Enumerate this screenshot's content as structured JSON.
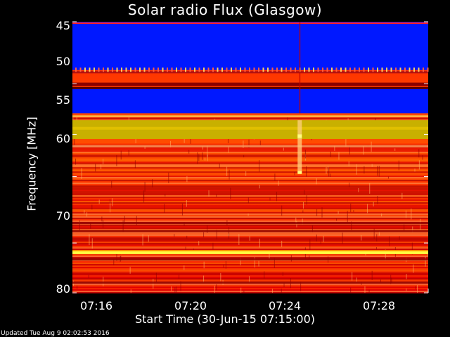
{
  "chart_data": {
    "type": "heatmap",
    "title": "Solar radio Flux (Glasgow)",
    "ylabel": "Frequency [MHz]",
    "xlabel": "Start Time (30-Jun-15 07:15:00)",
    "y_ticks": [
      "45",
      "50",
      "55",
      "60",
      "70",
      "80"
    ],
    "x_ticks": [
      "07:16",
      "07:20",
      "07:24",
      "07:28"
    ],
    "y_scale": "reciprocal",
    "ylim_mhz": [
      45,
      80
    ],
    "xlim_time": [
      "07:15:00",
      "07:30:00"
    ],
    "colormap": [
      "#000000",
      "#0000ff",
      "#8b0000",
      "#ff0000",
      "#ff8000",
      "#ffff00",
      "#ffffff"
    ],
    "features": {
      "blue_band_mhz": [
        45,
        48.8
      ],
      "blue_band2_mhz": [
        50.4,
        52.8
      ],
      "bright_band_mhz": [
        53.5,
        55.5
      ],
      "yellow_line_mhz": 71.5,
      "burst_time": "07:24:35"
    }
  },
  "footer": {
    "updated": "Updated Tue Aug  9 02:02:53 2016"
  }
}
